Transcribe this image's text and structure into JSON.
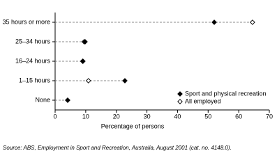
{
  "chart_data": {
    "type": "dot",
    "categories": [
      "35 hours or more",
      "25–34 hours",
      "16–24 hours",
      "1–15 hours",
      "None"
    ],
    "series": [
      {
        "name": "Sport and physical recreation",
        "color": "#000000",
        "marker": "filled-diamond",
        "values": [
          52,
          9.8,
          9.1,
          22.8,
          4.1
        ]
      },
      {
        "name": "All employed",
        "color": "#000000",
        "marker": "open-diamond",
        "values": [
          64.5,
          9.5,
          9,
          10.9,
          4.1
        ]
      }
    ],
    "xlim": [
      0,
      70
    ],
    "xticks": [
      0,
      10,
      20,
      30,
      40,
      50,
      60,
      70
    ],
    "x_label": "Percentage of persons",
    "legend": "lower-right",
    "note": "Source: ABS, Employment in Sport and Recreation, Australia, August 2001 (cat. no. 4148.0)."
  }
}
